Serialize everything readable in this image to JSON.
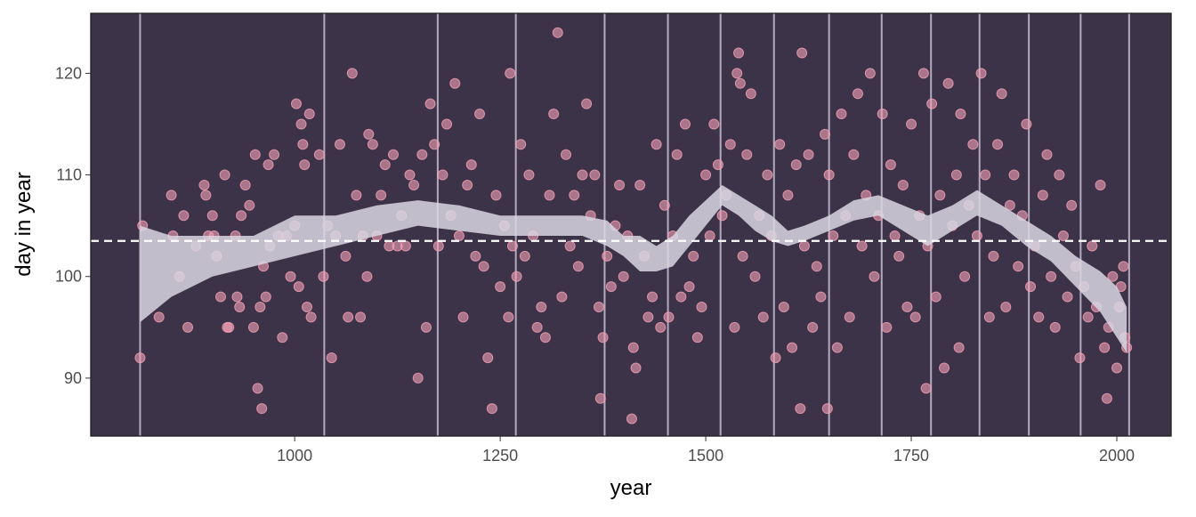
{
  "chart_data": {
    "type": "scatter",
    "xlabel": "year",
    "ylabel": "day in year",
    "xlim": [
      752,
      2066
    ],
    "ylim": [
      84.3,
      125.9
    ],
    "xticks": [
      1000,
      1250,
      1500,
      1750,
      2000
    ],
    "yticks": [
      90,
      100,
      110,
      120
    ],
    "background": "#3c3349",
    "knots": [
      812,
      1036,
      1174,
      1269,
      1377,
      1454,
      1518,
      1583,
      1650,
      1714,
      1774,
      1833,
      1893,
      1956,
      2015
    ],
    "knot_color": "#b3aabd",
    "mean_line": 103.5,
    "band": {
      "color": "#d9d6e0",
      "x": [
        812,
        850,
        900,
        950,
        1000,
        1050,
        1100,
        1150,
        1200,
        1250,
        1300,
        1350,
        1380,
        1400,
        1420,
        1440,
        1460,
        1480,
        1500,
        1520,
        1540,
        1560,
        1580,
        1600,
        1620,
        1650,
        1680,
        1710,
        1740,
        1770,
        1800,
        1830,
        1860,
        1890,
        1920,
        1950,
        1980,
        2000,
        2012
      ],
      "upper": [
        105,
        104,
        104,
        104,
        106,
        106,
        107,
        107.5,
        107,
        106,
        106,
        106,
        105.5,
        104,
        104,
        103,
        104,
        106,
        107.5,
        109,
        108,
        107,
        106,
        104.5,
        105,
        106,
        107.5,
        108,
        107,
        106,
        107,
        108.5,
        107,
        105.5,
        104,
        102,
        100.5,
        99,
        97
      ],
      "lower": [
        95.5,
        98,
        100,
        101,
        102,
        103,
        104,
        105,
        104.5,
        104,
        104,
        104,
        103,
        102,
        100.5,
        100.5,
        101,
        103,
        105,
        107,
        106,
        104.5,
        103.5,
        103,
        103.5,
        104.5,
        105.5,
        106,
        104.5,
        103,
        104.5,
        106,
        105,
        103,
        101.5,
        99,
        96.5,
        94,
        92.5
      ]
    },
    "series": [
      {
        "color": "#f4a0b5",
        "x": [
          812,
          815,
          835,
          850,
          852,
          860,
          865,
          870,
          880,
          890,
          892,
          895,
          900,
          902,
          905,
          910,
          915,
          918,
          920,
          928,
          930,
          933,
          935,
          940,
          945,
          950,
          952,
          955,
          958,
          960,
          962,
          965,
          968,
          970,
          975,
          980,
          985,
          990,
          995,
          1000,
          1002,
          1005,
          1008,
          1010,
          1012,
          1015,
          1018,
          1020,
          1030,
          1035,
          1040,
          1045,
          1050,
          1055,
          1062,
          1065,
          1070,
          1075,
          1080,
          1083,
          1088,
          1090,
          1095,
          1100,
          1105,
          1110,
          1115,
          1120,
          1125,
          1130,
          1135,
          1140,
          1145,
          1150,
          1155,
          1160,
          1165,
          1170,
          1175,
          1180,
          1185,
          1190,
          1195,
          1200,
          1205,
          1210,
          1215,
          1220,
          1225,
          1230,
          1235,
          1240,
          1245,
          1250,
          1255,
          1260,
          1262,
          1265,
          1270,
          1275,
          1280,
          1285,
          1290,
          1295,
          1300,
          1305,
          1310,
          1315,
          1320,
          1325,
          1330,
          1335,
          1340,
          1345,
          1350,
          1355,
          1360,
          1365,
          1370,
          1372,
          1375,
          1380,
          1385,
          1390,
          1395,
          1400,
          1405,
          1410,
          1412,
          1415,
          1420,
          1425,
          1430,
          1435,
          1440,
          1445,
          1450,
          1455,
          1460,
          1465,
          1470,
          1475,
          1480,
          1485,
          1490,
          1495,
          1500,
          1505,
          1510,
          1515,
          1520,
          1525,
          1530,
          1535,
          1538,
          1540,
          1542,
          1545,
          1550,
          1555,
          1560,
          1565,
          1570,
          1575,
          1580,
          1585,
          1590,
          1595,
          1600,
          1605,
          1610,
          1615,
          1617,
          1620,
          1625,
          1630,
          1635,
          1640,
          1645,
          1648,
          1650,
          1655,
          1660,
          1665,
          1670,
          1675,
          1680,
          1685,
          1690,
          1695,
          1700,
          1705,
          1710,
          1715,
          1720,
          1725,
          1730,
          1735,
          1740,
          1745,
          1750,
          1755,
          1760,
          1765,
          1768,
          1770,
          1775,
          1780,
          1785,
          1790,
          1795,
          1800,
          1805,
          1808,
          1810,
          1815,
          1820,
          1825,
          1830,
          1835,
          1840,
          1845,
          1850,
          1855,
          1860,
          1865,
          1870,
          1875,
          1880,
          1885,
          1890,
          1895,
          1900,
          1905,
          1910,
          1915,
          1920,
          1925,
          1930,
          1935,
          1940,
          1945,
          1950,
          1955,
          1960,
          1965,
          1970,
          1975,
          1980,
          1985,
          1988,
          1990,
          1995,
          2000,
          2003,
          2005,
          2008,
          2010,
          2012
        ],
        "values": [
          92,
          105,
          96,
          108,
          104,
          100,
          106,
          95,
          103,
          109,
          108,
          104,
          106,
          104,
          102,
          98,
          110,
          95,
          95,
          104,
          98,
          97,
          106,
          109,
          107,
          95,
          112,
          89,
          97,
          87,
          101,
          98,
          111,
          103,
          112,
          104,
          94,
          104,
          100,
          105,
          117,
          99,
          115,
          113,
          111,
          97,
          116,
          96,
          112,
          100,
          105,
          92,
          104,
          113,
          102,
          96,
          120,
          108,
          96,
          104,
          100,
          114,
          113,
          104,
          108,
          111,
          103,
          112,
          103,
          106,
          103,
          110,
          109,
          90,
          112,
          95,
          117,
          113,
          103,
          110,
          115,
          106,
          119,
          104,
          96,
          109,
          111,
          102,
          116,
          101,
          92,
          87,
          108,
          99,
          105,
          96,
          120,
          103,
          100,
          113,
          102,
          110,
          104,
          95,
          97,
          94,
          108,
          116,
          124,
          98,
          112,
          103,
          108,
          101,
          110,
          117,
          106,
          110,
          97,
          88,
          94,
          102,
          99,
          105,
          109,
          100,
          104,
          86,
          93,
          91,
          109,
          102,
          96,
          98,
          113,
          95,
          107,
          96,
          104,
          112,
          98,
          115,
          99,
          102,
          94,
          97,
          110,
          104,
          115,
          111,
          106,
          108,
          113,
          95,
          120,
          122,
          119,
          102,
          112,
          118,
          100,
          106,
          96,
          110,
          104,
          92,
          113,
          97,
          108,
          93,
          111,
          87,
          122,
          103,
          112,
          95,
          101,
          98,
          114,
          87,
          110,
          104,
          93,
          116,
          106,
          96,
          112,
          118,
          103,
          108,
          120,
          100,
          106,
          116,
          95,
          111,
          104,
          102,
          109,
          97,
          115,
          96,
          106,
          120,
          89,
          103,
          117,
          98,
          108,
          91,
          119,
          105,
          110,
          93,
          116,
          100,
          107,
          113,
          104,
          120,
          110,
          96,
          102,
          113,
          118,
          97,
          107,
          110,
          101,
          106,
          115,
          99,
          103,
          96,
          108,
          112,
          100,
          95,
          110,
          104,
          98,
          107,
          101,
          92,
          99,
          96,
          103,
          97,
          109,
          93,
          88,
          95,
          100,
          91,
          97,
          99,
          101,
          94,
          93
        ]
      }
    ]
  }
}
